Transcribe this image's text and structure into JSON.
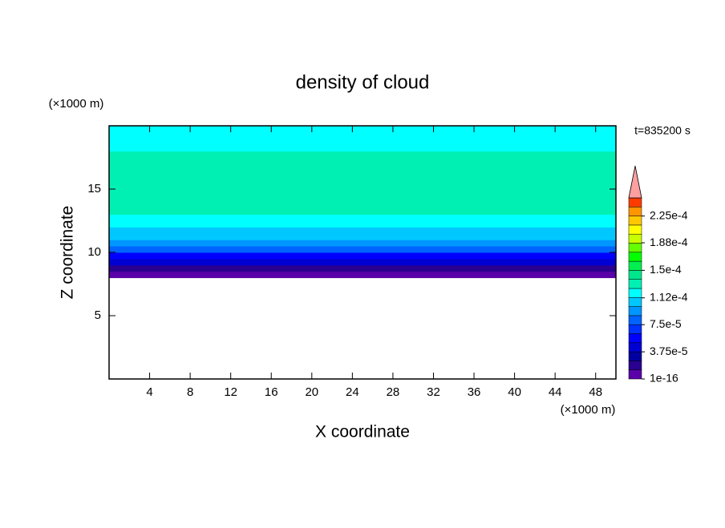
{
  "chart_data": {
    "type": "contour",
    "title": "density of cloud",
    "xlabel": "X coordinate",
    "ylabel": "Z coordinate",
    "x_unit": "(×1000 m)",
    "y_unit": "(×1000 m)",
    "annotation": "t=835200 s",
    "xlim": [
      0,
      50
    ],
    "ylim": [
      0,
      20
    ],
    "xticks": [
      4,
      8,
      12,
      16,
      20,
      24,
      28,
      32,
      36,
      40,
      44,
      48
    ],
    "yticks": [
      5,
      10,
      15
    ],
    "ybins": [
      8,
      8.5,
      9,
      9.5,
      10,
      10.5,
      11,
      12,
      13,
      18,
      19,
      20
    ],
    "values": [
      1e-05,
      2.5e-05,
      4e-05,
      6e-05,
      8e-05,
      9.5e-05,
      0.000105,
      0.000115,
      0.000135,
      0.00012,
      0.000115
    ],
    "clim": [
      1e-16,
      0.00025
    ],
    "colorbar_ticks": [
      1e-16,
      {
        "value": 3.75e-05,
        "label": "3.75e-5"
      },
      {
        "value": 7.5e-05,
        "label": "7.5e-5"
      },
      {
        "value": 0.000112,
        "label": "1.12e-4"
      },
      {
        "value": 0.00015,
        "label": "1.5e-4"
      },
      {
        "value": 0.000188,
        "label": "1.88e-4"
      },
      {
        "value": 0.000225,
        "label": "2.25e-4"
      }
    ],
    "colors": [
      "#5a00a8",
      "#2a0090",
      "#0000a0",
      "#0000d2",
      "#0000ff",
      "#0032ff",
      "#0064ff",
      "#0096ff",
      "#00c8ff",
      "#00ffff",
      "#00f0b4",
      "#00e68c",
      "#00f050",
      "#00ff00",
      "#64ff00",
      "#c8ff00",
      "#ffff00",
      "#ffc800",
      "#ff9600",
      "#ff3c00"
    ],
    "extend_color": "#ffa0a0"
  }
}
